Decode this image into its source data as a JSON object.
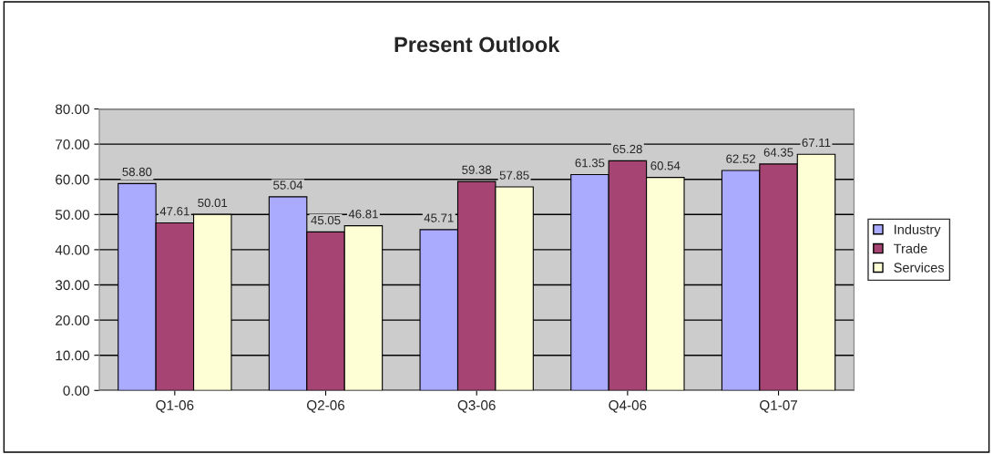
{
  "chart_data": {
    "type": "bar",
    "title": "Present Outlook",
    "categories": [
      "Q1-06",
      "Q2-06",
      "Q3-06",
      "Q4-06",
      "Q1-07"
    ],
    "series": [
      {
        "name": "Industry",
        "color": "#aaaaff",
        "values": [
          58.8,
          55.04,
          45.71,
          61.35,
          62.52
        ],
        "value_labels": [
          "58.80",
          "55.04",
          "45.71",
          "61.35",
          "62.52"
        ]
      },
      {
        "name": "Trade",
        "color": "#a64473",
        "values": [
          47.61,
          45.05,
          59.38,
          65.28,
          64.35
        ],
        "value_labels": [
          "47.61",
          "45.05",
          "59.38",
          "65.28",
          "64.35"
        ]
      },
      {
        "name": "Services",
        "color": "#ffffd6",
        "values": [
          50.01,
          46.81,
          57.85,
          60.54,
          67.11
        ],
        "value_labels": [
          "50.01",
          "46.81",
          "57.85",
          "60.54",
          "67.11"
        ]
      }
    ],
    "ylim": [
      0,
      80
    ],
    "yticks": [
      {
        "value": 0,
        "label": "0.00"
      },
      {
        "value": 10,
        "label": "10.00"
      },
      {
        "value": 20,
        "label": "20.00"
      },
      {
        "value": 30,
        "label": "30.00"
      },
      {
        "value": 40,
        "label": "40.00"
      },
      {
        "value": 50,
        "label": "50.00"
      },
      {
        "value": 60,
        "label": "60.00"
      },
      {
        "value": 70,
        "label": "70.00"
      },
      {
        "value": 80,
        "label": "80.00"
      }
    ],
    "grid": "y",
    "legend": "right"
  }
}
